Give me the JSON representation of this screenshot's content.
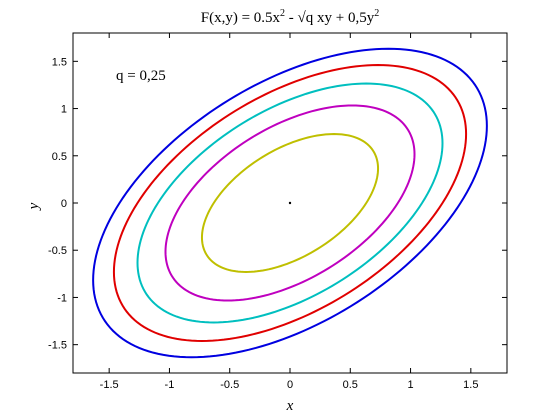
{
  "chart_data": {
    "type": "line",
    "title": {
      "prefix": "F(x,y) = 0.5x",
      "sup1": "2",
      "middle": " - √q xy + 0,5y",
      "sup2": "2"
    },
    "xlabel": "x",
    "ylabel": "y",
    "annotation": "q = 0,25",
    "xlim": [
      -1.8,
      1.8
    ],
    "ylim": [
      -1.8,
      1.8
    ],
    "xticks": [
      "-1.5",
      "-1",
      "-0.5",
      "0",
      "0.5",
      "1",
      "1.5"
    ],
    "yticks": [
      "-1.5",
      "-1",
      "-0.5",
      "0",
      "0.5",
      "1",
      "1.5"
    ],
    "grid": false,
    "q": 0.25,
    "levels": [
      0.2,
      0.4,
      0.6,
      0.8,
      1.0
    ],
    "level_colors": [
      "#bfbf00",
      "#bf00bf",
      "#00bfbf",
      "#e00000",
      "#0000e0"
    ],
    "center_point": [
      0,
      0
    ]
  }
}
